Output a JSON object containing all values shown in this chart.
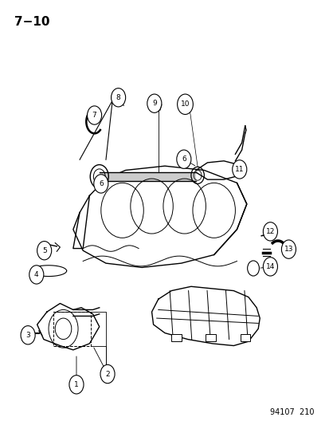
{
  "title": "7−10",
  "footer": "94107  210",
  "background_color": "#ffffff",
  "line_color": "#000000",
  "label_color": "#000000",
  "fig_width": 4.14,
  "fig_height": 5.33,
  "dpi": 100
}
